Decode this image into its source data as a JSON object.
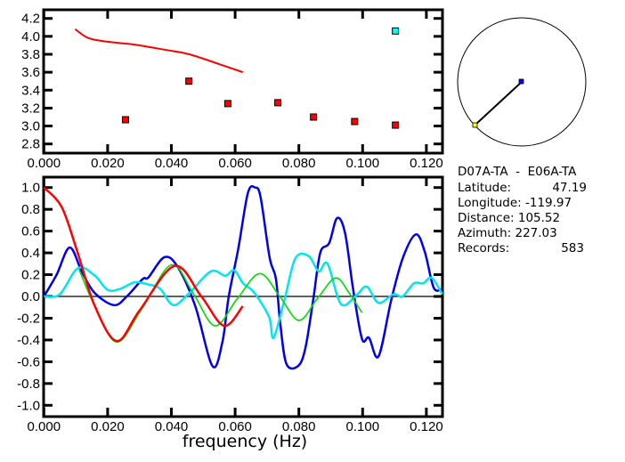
{
  "chart_data": [
    {
      "type": "scatter",
      "name": "velocity-panel",
      "xlim": [
        0.0,
        0.125
      ],
      "ylim": [
        2.7,
        4.25
      ],
      "x_ticks": [
        "0.000",
        "0.020",
        "0.040",
        "0.060",
        "0.080",
        "0.100",
        "0.120"
      ],
      "y_ticks": [
        "2.8",
        "3.0",
        "3.2",
        "3.4",
        "3.6",
        "3.8",
        "4.0",
        "4.2"
      ],
      "series": [
        {
          "name": "dispersion-curve",
          "kind": "line",
          "color": "#ff0000",
          "points": [
            [
              0.0098,
              4.08
            ],
            [
              0.014,
              3.98
            ],
            [
              0.02,
              3.94
            ],
            [
              0.028,
              3.91
            ],
            [
              0.038,
              3.85
            ],
            [
              0.0456,
              3.8
            ],
            [
              0.055,
              3.69
            ],
            [
              0.0624,
              3.6
            ]
          ]
        },
        {
          "name": "measurements",
          "kind": "markers",
          "color": "#ff0000",
          "points": [
            [
              0.0256,
              3.07
            ],
            [
              0.0455,
              3.5
            ],
            [
              0.0577,
              3.25
            ],
            [
              0.0734,
              3.26
            ],
            [
              0.0846,
              3.1
            ],
            [
              0.0975,
              3.05
            ],
            [
              0.1103,
              3.01
            ]
          ]
        },
        {
          "name": "outlier",
          "kind": "markers",
          "color": "#00ffff",
          "points": [
            [
              0.1103,
              4.06
            ]
          ]
        }
      ]
    },
    {
      "type": "line",
      "name": "correlation-panel",
      "xlabel": "frequency (Hz)",
      "xlim": [
        0.0,
        0.125
      ],
      "ylim": [
        -1.1,
        1.1
      ],
      "x_ticks": [
        "0.000",
        "0.020",
        "0.040",
        "0.060",
        "0.080",
        "0.100",
        "0.120"
      ],
      "y_ticks": [
        "-1.0",
        "-0.8",
        "-0.6",
        "-0.4",
        "-0.2",
        "0.0",
        "0.2",
        "0.4",
        "0.6",
        "0.8",
        "1.0"
      ],
      "series": [
        {
          "name": "blue",
          "color": "#0000ee",
          "points": [
            [
              0,
              0
            ],
            [
              0.004,
              0.2
            ],
            [
              0.0081,
              0.45
            ],
            [
              0.012,
              0.22
            ],
            [
              0.016,
              0.03
            ],
            [
              0.022,
              -0.08
            ],
            [
              0.026,
              0
            ],
            [
              0.031,
              0.16
            ],
            [
              0.0328,
              0.175
            ],
            [
              0.0378,
              0.36
            ],
            [
              0.042,
              0.27
            ],
            [
              0.0475,
              -0.09
            ],
            [
              0.0529,
              -0.64
            ],
            [
              0.056,
              -0.42
            ],
            [
              0.058,
              0
            ],
            [
              0.061,
              0.44
            ],
            [
              0.064,
              0.95
            ],
            [
              0.0663,
              1.0
            ],
            [
              0.068,
              0.91
            ],
            [
              0.0708,
              0.36
            ],
            [
              0.0728,
              0.16
            ],
            [
              0.0742,
              -0.26
            ],
            [
              0.0761,
              -0.62
            ],
            [
              0.0797,
              -0.64
            ],
            [
              0.082,
              -0.48
            ],
            [
              0.0845,
              -0.03
            ],
            [
              0.0867,
              0.4
            ],
            [
              0.0895,
              0.49
            ],
            [
              0.092,
              0.72
            ],
            [
              0.0945,
              0.58
            ],
            [
              0.097,
              0.07
            ],
            [
              0.0998,
              -0.39
            ],
            [
              0.102,
              -0.38
            ],
            [
              0.105,
              -0.55
            ],
            [
              0.109,
              -0.03
            ],
            [
              0.1127,
              0.36
            ],
            [
              0.1167,
              0.57
            ],
            [
              0.1195,
              0.41
            ],
            [
              0.1223,
              0.08
            ],
            [
              0.125,
              0.07
            ]
          ]
        },
        {
          "name": "cyan",
          "color": "#00e5ee",
          "points": [
            [
              0,
              0
            ],
            [
              0.005,
              0.02
            ],
            [
              0.0107,
              0.26
            ],
            [
              0.016,
              0.19
            ],
            [
              0.02,
              0.06
            ],
            [
              0.024,
              0.07
            ],
            [
              0.0285,
              0.13
            ],
            [
              0.0328,
              0.11
            ],
            [
              0.0365,
              0.07
            ],
            [
              0.0406,
              -0.08
            ],
            [
              0.0456,
              0.03
            ],
            [
              0.0524,
              0.23
            ],
            [
              0.0569,
              0.19
            ],
            [
              0.0597,
              0.24
            ],
            [
              0.0625,
              0.12
            ],
            [
              0.0652,
              0.06
            ],
            [
              0.068,
              -0.05
            ],
            [
              0.0708,
              -0.2
            ],
            [
              0.0721,
              -0.38
            ],
            [
              0.0755,
              -0.03
            ],
            [
              0.0789,
              0.35
            ],
            [
              0.0831,
              0.37
            ],
            [
              0.0862,
              0.23
            ],
            [
              0.089,
              0.3
            ],
            [
              0.0932,
              -0.07
            ],
            [
              0.098,
              0.01
            ],
            [
              0.1013,
              0.09
            ],
            [
              0.105,
              -0.06
            ],
            [
              0.1097,
              0.02
            ],
            [
              0.1125,
              0
            ],
            [
              0.1161,
              0.12
            ],
            [
              0.1189,
              0.12
            ],
            [
              0.1217,
              0.17
            ],
            [
              0.125,
              0.02
            ]
          ]
        },
        {
          "name": "green",
          "color": "#00dd00",
          "points": [
            [
              0.011,
              0.25
            ],
            [
              0.016,
              -0.09
            ],
            [
              0.0229,
              -0.42
            ],
            [
              0.031,
              -0.1
            ],
            [
              0.04,
              0.29
            ],
            [
              0.047,
              0.02
            ],
            [
              0.0537,
              -0.27
            ],
            [
              0.0607,
              -0.02
            ],
            [
              0.0677,
              0.21
            ],
            [
              0.074,
              0
            ],
            [
              0.08,
              -0.22
            ],
            [
              0.0858,
              -0.02
            ],
            [
              0.0915,
              0.17
            ],
            [
              0.0958,
              0.03
            ],
            [
              0.0998,
              -0.15
            ]
          ]
        },
        {
          "name": "red",
          "color": "#ff0000",
          "points": [
            [
              0,
              1.0
            ],
            [
              0.0056,
              0.82
            ],
            [
              0.0105,
              0.41
            ],
            [
              0.016,
              -0.09
            ],
            [
              0.0229,
              -0.41
            ],
            [
              0.03,
              -0.13
            ],
            [
              0.041,
              0.28
            ],
            [
              0.0494,
              0
            ],
            [
              0.0565,
              -0.27
            ],
            [
              0.0624,
              -0.09
            ]
          ]
        }
      ]
    }
  ],
  "map": {
    "station_color": "#0000ff",
    "source_color": "#ffff00",
    "azimuth_deg": 227.03
  },
  "info": {
    "pair": "D07A-TA  -  E06A-TA",
    "latitude_label": "Latitude:",
    "latitude": "47.19",
    "longitude_label": "Longitude:",
    "longitude": "-119.97",
    "distance_label": "Distance:",
    "distance": "105.52",
    "azimuth_label": "Azimuth:",
    "azimuth": "227.03",
    "records_label": "Records:",
    "records": "583"
  }
}
